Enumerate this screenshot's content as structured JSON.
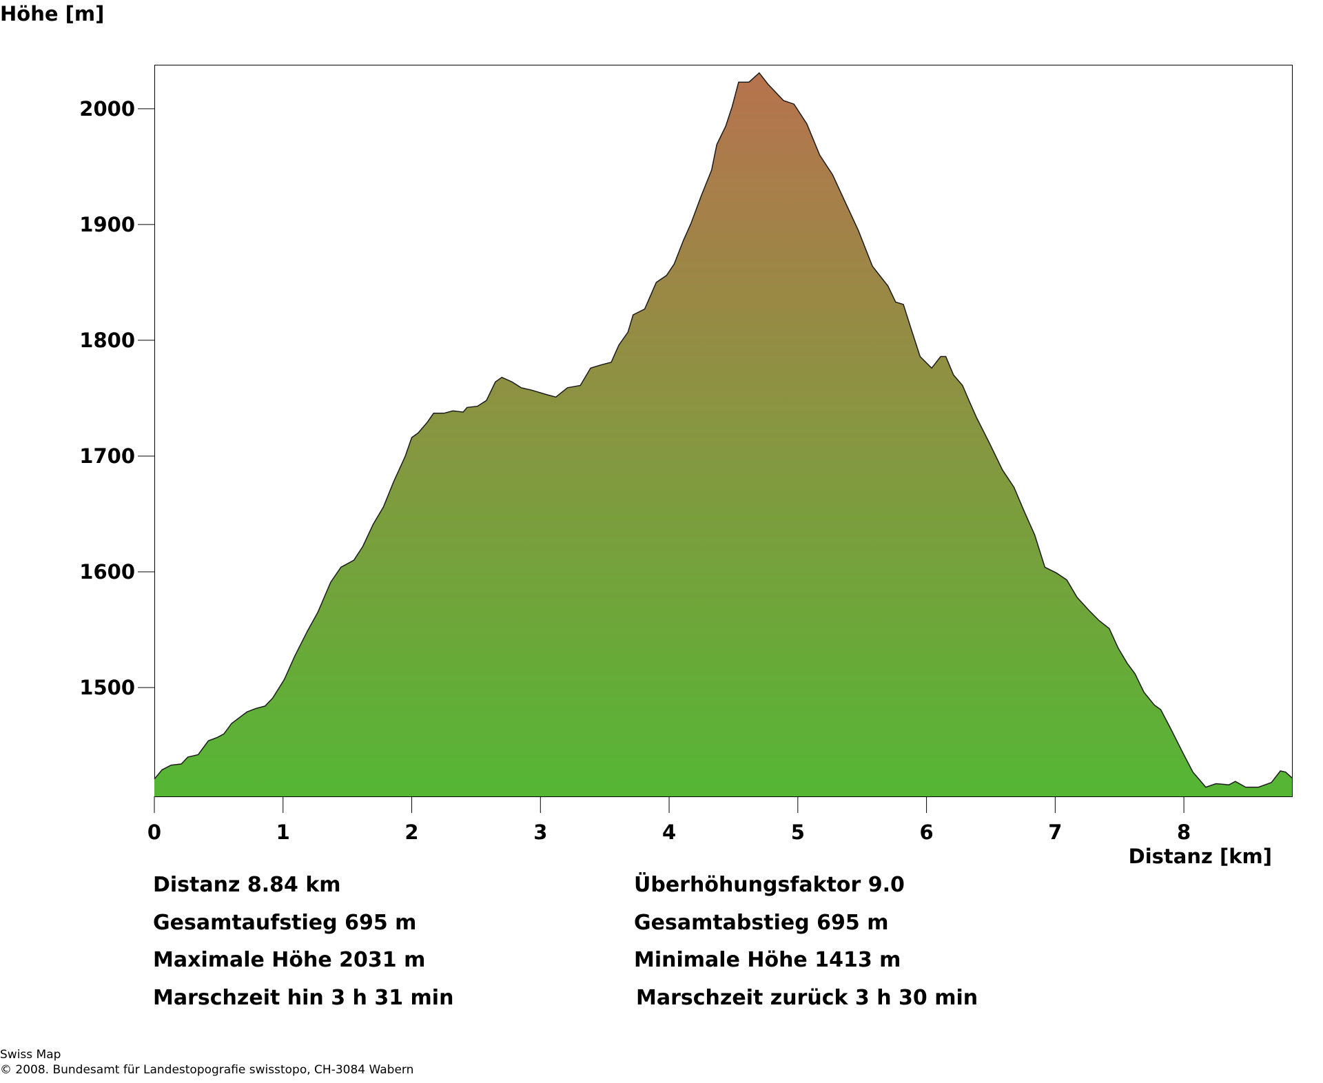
{
  "chart_data": {
    "type": "area",
    "title": "",
    "ylabel": "Höhe [m]",
    "xlabel": "Distanz [km]",
    "xlim": [
      0,
      8.84
    ],
    "ylim": [
      1406,
      2038
    ],
    "xticks": [
      "0",
      "1",
      "2",
      "3",
      "4",
      "5",
      "6",
      "7",
      "8"
    ],
    "yticks": [
      "1500",
      "1600",
      "1700",
      "1800",
      "1900",
      "2000"
    ],
    "grid": false,
    "colors": {
      "top": "#b8724e",
      "mid": "#879640",
      "bottom": "#55b634",
      "line": "#1a1a1a"
    },
    "x": [
      0,
      0.06,
      0.13,
      0.21,
      0.26,
      0.34,
      0.42,
      0.49,
      0.54,
      0.6,
      0.72,
      0.79,
      0.86,
      0.92,
      1.01,
      1.09,
      1.19,
      1.27,
      1.37,
      1.45,
      1.55,
      1.62,
      1.7,
      1.78,
      1.86,
      1.95,
      2.0,
      2.05,
      2.12,
      2.17,
      2.25,
      2.32,
      2.4,
      2.43,
      2.51,
      2.58,
      2.65,
      2.7,
      2.78,
      2.85,
      2.93,
      3.05,
      3.12,
      3.21,
      3.31,
      3.39,
      3.48,
      3.55,
      3.61,
      3.68,
      3.72,
      3.81,
      3.9,
      3.98,
      4.04,
      4.11,
      4.17,
      4.25,
      4.33,
      4.37,
      4.44,
      4.49,
      4.54,
      4.62,
      4.7,
      4.77,
      4.89,
      4.97,
      5.07,
      5.17,
      5.27,
      5.37,
      5.47,
      5.58,
      5.7,
      5.76,
      5.82,
      5.88,
      5.95,
      6.04,
      6.11,
      6.15,
      6.21,
      6.28,
      6.33,
      6.39,
      6.49,
      6.59,
      6.68,
      6.76,
      6.84,
      6.92,
      7.01,
      7.09,
      7.17,
      7.26,
      7.34,
      7.42,
      7.49,
      7.56,
      7.62,
      7.69,
      7.77,
      7.82,
      7.9,
      7.99,
      8.07,
      8.17,
      8.25,
      8.35,
      8.4,
      8.48,
      8.58,
      8.68,
      8.75,
      8.79,
      8.84
    ],
    "y": [
      1421,
      1429,
      1433,
      1434,
      1440,
      1442,
      1454,
      1457,
      1460,
      1469,
      1479,
      1482,
      1484,
      1491,
      1507,
      1527,
      1549,
      1565,
      1591,
      1604,
      1610,
      1622,
      1641,
      1656,
      1678,
      1700,
      1716,
      1720,
      1729,
      1737,
      1737,
      1739,
      1738,
      1742,
      1743,
      1748,
      1764,
      1768,
      1764,
      1759,
      1757,
      1753,
      1751,
      1759,
      1761,
      1776,
      1779,
      1781,
      1796,
      1807,
      1822,
      1827,
      1850,
      1856,
      1866,
      1886,
      1901,
      1925,
      1947,
      1969,
      1985,
      2002,
      2023,
      2023,
      2031,
      2021,
      2007,
      2004,
      1987,
      1960,
      1943,
      1919,
      1895,
      1864,
      1847,
      1833,
      1831,
      1810,
      1786,
      1776,
      1786,
      1786,
      1770,
      1761,
      1748,
      1733,
      1711,
      1688,
      1673,
      1652,
      1632,
      1604,
      1599,
      1593,
      1578,
      1567,
      1558,
      1551,
      1534,
      1521,
      1512,
      1496,
      1485,
      1481,
      1464,
      1444,
      1427,
      1414,
      1417,
      1416,
      1419,
      1414,
      1414,
      1418,
      1428,
      1427,
      1422
    ]
  },
  "stats": {
    "left": [
      "Distanz 8.84 km",
      "Gesamtaufstieg  695 m",
      "Maximale Höhe  2031 m",
      "Marschzeit hin  3 h 31 min"
    ],
    "right": [
      "Überhöhungsfaktor 9.0",
      "Gesamtabstieg  695 m",
      "Minimale Höhe  1413 m",
      "Marschzeit zurück  3 h 30 min"
    ]
  },
  "footer": {
    "line1": "Swiss Map",
    "line2": "© 2008. Bundesamt für Landestopografie swisstopo, CH-3084 Wabern"
  }
}
